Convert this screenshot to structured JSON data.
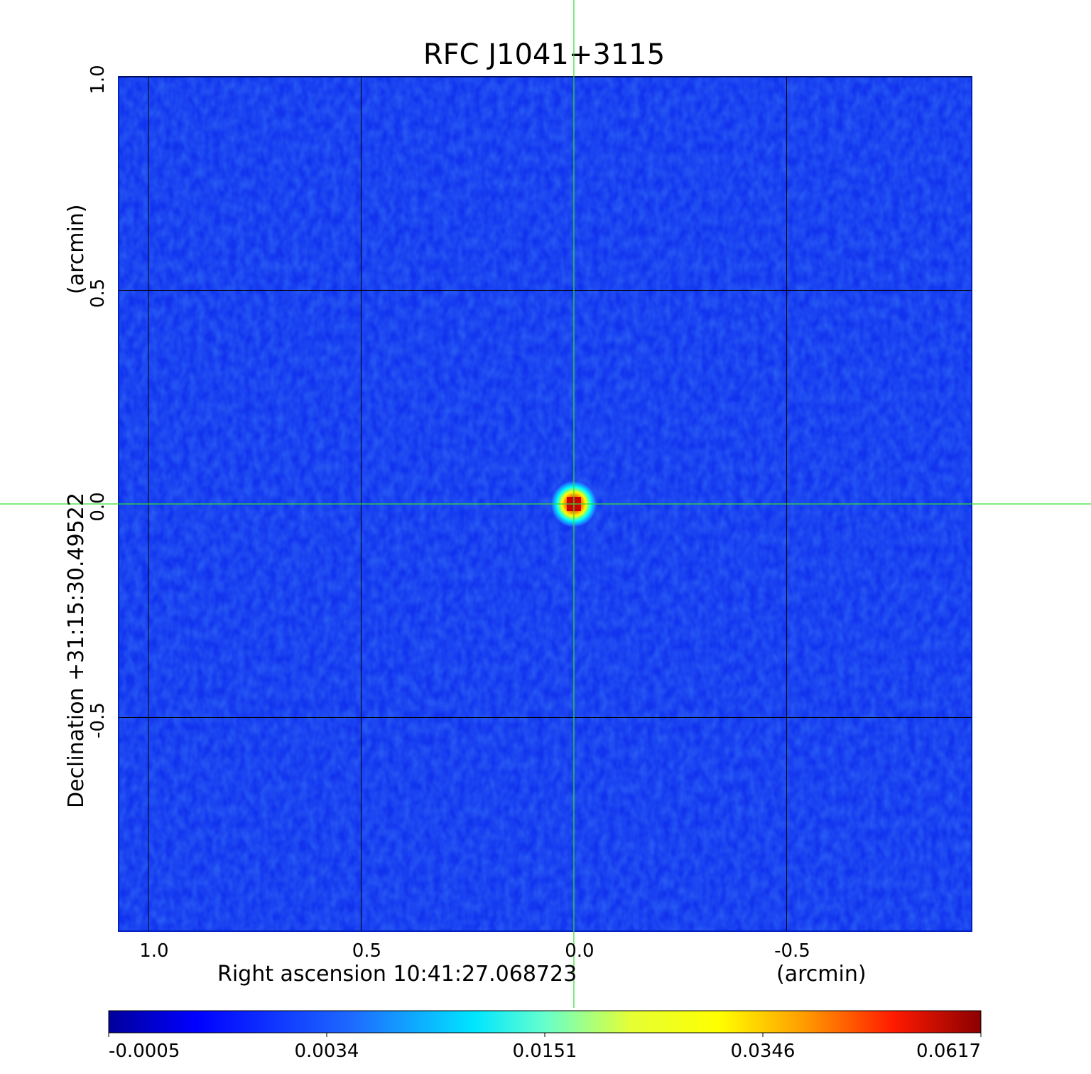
{
  "chart_data": {
    "type": "heatmap",
    "title": "RFC J1041+3115",
    "title_color": "#0a1ad8",
    "xlabel": "Right ascension  10:41:27.068723",
    "xlabel_unit": "(arcmin)",
    "ylabel": "Declination  +31:15:30.49522",
    "ylabel_unit": "(arcmin)",
    "xlim": [
      1.07,
      -0.935
    ],
    "ylim": [
      -1.0,
      1.0
    ],
    "x_ticks": [
      1.0,
      0.5,
      0.0,
      -0.5
    ],
    "x_tick_labels": [
      "1.0",
      "0.5",
      "0.0",
      "-0.5"
    ],
    "y_ticks": [
      1.0,
      0.5,
      0.0,
      -0.5
    ],
    "y_tick_labels": [
      "1.0",
      "0.5",
      "0.0",
      "-0.5"
    ],
    "grid": true,
    "grid_color": "#000000",
    "crosshair": {
      "x": 0.0,
      "y": 0.0,
      "color": "#33dd33"
    },
    "source_peak": {
      "x": 0.0,
      "y": 0.0,
      "value": 0.0617
    },
    "colormap": "jet",
    "colorbar": {
      "orientation": "horizontal",
      "placement": "bottom",
      "tick_labels": [
        "-0.0005",
        "0.0034",
        "0.0151",
        "0.0346",
        "0.0617"
      ],
      "colors": [
        "#00009b",
        "#0000ff",
        "#00ffff",
        "#ffff00",
        "#ff0000",
        "#800000"
      ]
    },
    "background_value": 0.0,
    "background_color": "#1133ee"
  }
}
